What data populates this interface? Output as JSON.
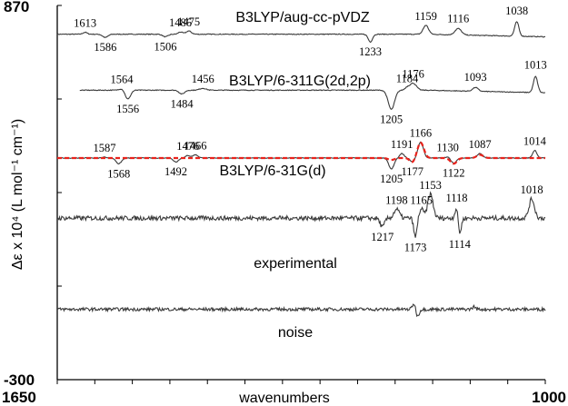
{
  "chart_data": {
    "type": "line",
    "xlabel": "wavenumbers",
    "ylabel": "Δε x 10⁴ (L mol⁻¹ cm⁻¹)",
    "xlim": [
      1650,
      1000
    ],
    "ylim": [
      -300,
      870
    ],
    "x_tick_labels": [
      "1650",
      "1000"
    ],
    "y_tick_labels": [
      "870",
      "-300"
    ],
    "grid": false,
    "colors": {
      "trace": "#3a3a3a",
      "comparison": "#e8231c",
      "axis": "#000000"
    },
    "series": [
      {
        "name": "B3LYP/aug-cc-pVDZ",
        "baseline": 780,
        "scale": 1.0,
        "bands": [
          {
            "x": 1613,
            "value": 6,
            "width": 4
          },
          {
            "x": 1586,
            "value": -10,
            "width": 5
          },
          {
            "x": 1506,
            "value": -8,
            "width": 5
          },
          {
            "x": 1486,
            "value": 7,
            "width": 4
          },
          {
            "x": 1475,
            "value": 10,
            "width": 5
          },
          {
            "x": 1233,
            "value": -24,
            "width": 4
          },
          {
            "x": 1159,
            "value": 28,
            "width": 5
          },
          {
            "x": 1116,
            "value": 20,
            "width": 6
          },
          {
            "x": 1038,
            "value": 45,
            "width": 4
          }
        ],
        "peak_labels": [
          {
            "text": "1613",
            "x": 1613,
            "side": "above"
          },
          {
            "text": "1586",
            "x": 1586,
            "side": "below"
          },
          {
            "text": "1506",
            "x": 1506,
            "side": "below"
          },
          {
            "text": "1486",
            "x": 1486,
            "side": "above"
          },
          {
            "text": "1475",
            "x": 1475,
            "side": "above"
          },
          {
            "text": "1233",
            "x": 1233,
            "side": "below"
          },
          {
            "text": "1159",
            "x": 1159,
            "side": "above"
          },
          {
            "text": "1116",
            "x": 1116,
            "side": "above"
          },
          {
            "text": "1038",
            "x": 1038,
            "side": "above"
          }
        ]
      },
      {
        "name": "B3LYP/6-311G(2d,2p)",
        "baseline": 605,
        "scale": 1.0,
        "bands": [
          {
            "x": 1564,
            "value": 5,
            "width": 5
          },
          {
            "x": 1556,
            "value": -28,
            "width": 5
          },
          {
            "x": 1484,
            "value": -12,
            "width": 5
          },
          {
            "x": 1456,
            "value": 6,
            "width": 6
          },
          {
            "x": 1205,
            "value": -60,
            "width": 6
          },
          {
            "x": 1184,
            "value": 8,
            "width": 4
          },
          {
            "x": 1176,
            "value": 22,
            "width": 6
          },
          {
            "x": 1093,
            "value": 12,
            "width": 5
          },
          {
            "x": 1013,
            "value": 50,
            "width": 4
          }
        ],
        "peak_labels": [
          {
            "text": "1564",
            "x": 1564,
            "side": "above"
          },
          {
            "text": "1556",
            "x": 1556,
            "side": "below"
          },
          {
            "text": "1484",
            "x": 1484,
            "side": "below"
          },
          {
            "text": "1456",
            "x": 1456,
            "side": "above"
          },
          {
            "text": "1205",
            "x": 1205,
            "side": "below"
          },
          {
            "text": "1184",
            "x": 1184,
            "side": "above"
          },
          {
            "text": "1176",
            "x": 1176,
            "side": "above"
          },
          {
            "text": "1093",
            "x": 1093,
            "side": "above"
          },
          {
            "text": "1013",
            "x": 1013,
            "side": "above"
          }
        ]
      },
      {
        "name": "B3LYP/6-31G(d)",
        "baseline": 393,
        "scale": 1.0,
        "bands": [
          {
            "x": 1587,
            "value": 3,
            "width": 4
          },
          {
            "x": 1568,
            "value": -18,
            "width": 5
          },
          {
            "x": 1492,
            "value": -12,
            "width": 5
          },
          {
            "x": 1476,
            "value": 8,
            "width": 4
          },
          {
            "x": 1466,
            "value": 10,
            "width": 5
          },
          {
            "x": 1205,
            "value": -34,
            "width": 5
          },
          {
            "x": 1191,
            "value": 14,
            "width": 4
          },
          {
            "x": 1177,
            "value": -12,
            "width": 4
          },
          {
            "x": 1166,
            "value": 50,
            "width": 5
          },
          {
            "x": 1130,
            "value": 4,
            "width": 4
          },
          {
            "x": 1122,
            "value": -16,
            "width": 5
          },
          {
            "x": 1087,
            "value": 14,
            "width": 5
          },
          {
            "x": 1014,
            "value": 24,
            "width": 4
          }
        ],
        "peak_labels": [
          {
            "text": "1587",
            "x": 1587,
            "side": "above"
          },
          {
            "text": "1568",
            "x": 1568,
            "side": "below"
          },
          {
            "text": "1492",
            "x": 1492,
            "side": "below"
          },
          {
            "text": "1476",
            "x": 1476,
            "side": "above"
          },
          {
            "text": "1466",
            "x": 1466,
            "side": "above"
          },
          {
            "text": "1205",
            "x": 1205,
            "side": "below"
          },
          {
            "text": "1191",
            "x": 1191,
            "side": "above"
          },
          {
            "text": "1177",
            "x": 1177,
            "side": "below"
          },
          {
            "text": "1166",
            "x": 1166,
            "side": "above"
          },
          {
            "text": "1130",
            "x": 1130,
            "side": "above"
          },
          {
            "text": "1122",
            "x": 1122,
            "side": "below"
          },
          {
            "text": "1087",
            "x": 1087,
            "side": "above"
          },
          {
            "text": "1014",
            "x": 1014,
            "side": "above"
          }
        ]
      },
      {
        "name": "experimental",
        "baseline": 205,
        "scale": 1.0,
        "bands": [
          {
            "x": 1217,
            "value": -28,
            "width": 4
          },
          {
            "x": 1198,
            "value": 28,
            "width": 5
          },
          {
            "x": 1173,
            "value": -60,
            "width": 3
          },
          {
            "x": 1165,
            "value": 28,
            "width": 4
          },
          {
            "x": 1153,
            "value": 75,
            "width": 5
          },
          {
            "x": 1118,
            "value": 35,
            "width": 3
          },
          {
            "x": 1114,
            "value": -50,
            "width": 3
          },
          {
            "x": 1018,
            "value": 60,
            "width": 5
          }
        ],
        "peak_labels": [
          {
            "text": "1217",
            "x": 1217,
            "side": "below"
          },
          {
            "text": "1198",
            "x": 1198,
            "side": "above"
          },
          {
            "text": "1173",
            "x": 1173,
            "side": "below"
          },
          {
            "text": "1165",
            "x": 1165,
            "side": "above"
          },
          {
            "text": "1153",
            "x": 1153,
            "side": "above"
          },
          {
            "text": "1118",
            "x": 1118,
            "side": "above"
          },
          {
            "text": "1114",
            "x": 1114,
            "side": "below"
          },
          {
            "text": "1018",
            "x": 1018,
            "side": "above"
          }
        ]
      },
      {
        "name": "noise",
        "baseline": -80,
        "scale": 1.0,
        "bands": [
          {
            "x": 1175,
            "value": 18,
            "width": 3
          },
          {
            "x": 1170,
            "value": -22,
            "width": 3
          },
          {
            "x": 1095,
            "value": 8,
            "width": 3
          }
        ],
        "peak_labels": []
      }
    ]
  }
}
